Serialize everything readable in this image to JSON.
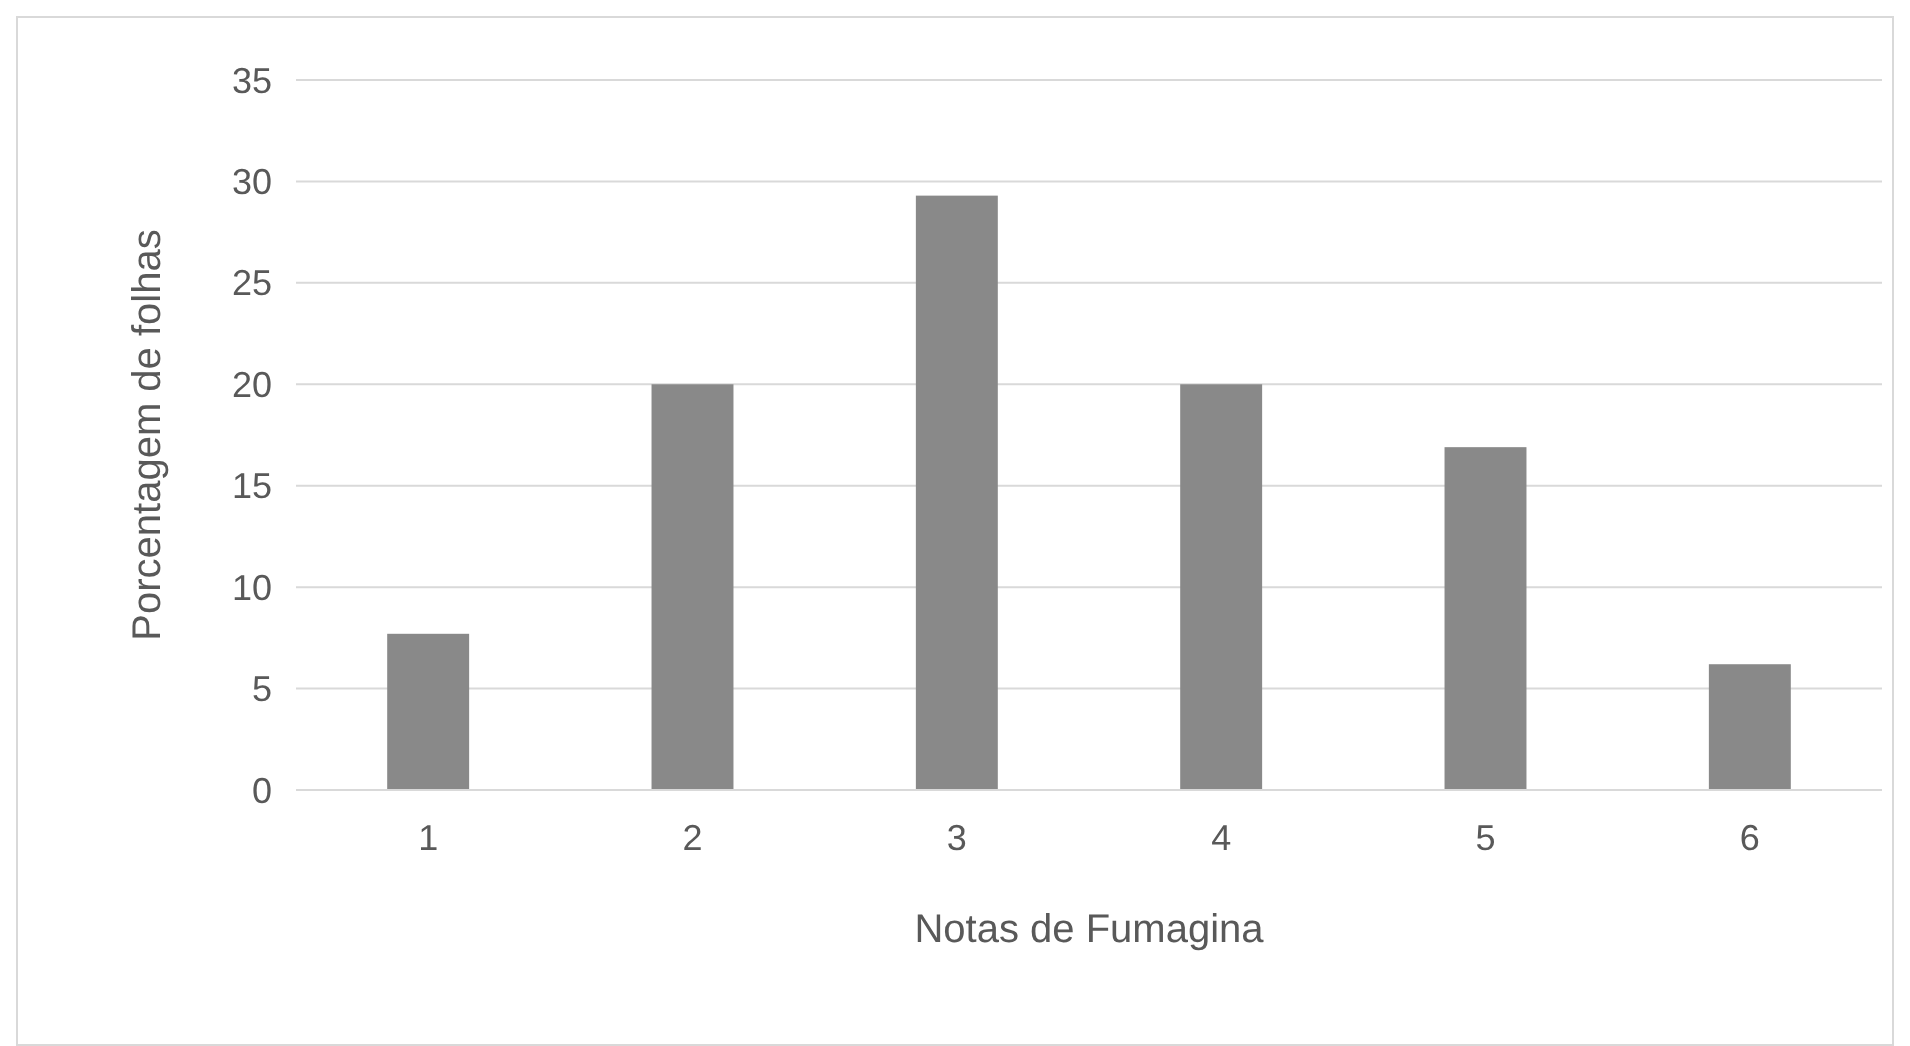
{
  "chart_data": {
    "type": "bar",
    "xlabel": "Notas de Fumagina",
    "ylabel": "Porcentagem de folhas",
    "categories": [
      "1",
      "2",
      "3",
      "4",
      "5",
      "6"
    ],
    "values": [
      7.7,
      20,
      29.3,
      20,
      16.9,
      6.2
    ],
    "color": "#898989",
    "ylim": [
      0,
      35
    ],
    "yticks": [
      0,
      5,
      10,
      15,
      20,
      25,
      30,
      35
    ],
    "grid": "y"
  }
}
